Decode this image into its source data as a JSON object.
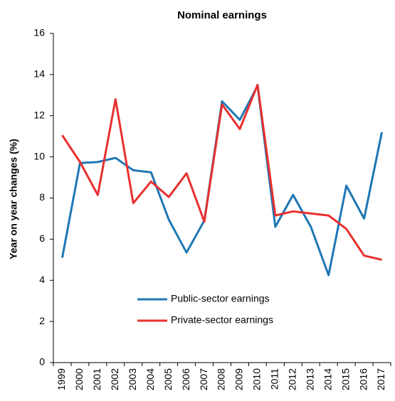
{
  "chart_data": {
    "type": "line",
    "title": "Nominal earnings",
    "y_label": "Year on year changes (%)",
    "categories": [
      "1999",
      "2000",
      "2001",
      "2002",
      "2003",
      "2004",
      "2005",
      "2006",
      "2007",
      "2008",
      "2009",
      "2010",
      "2011",
      "2012",
      "2013",
      "2014",
      "2015",
      "2016",
      "2017"
    ],
    "series": [
      {
        "name": "Public-sector earnings",
        "color": "#1f77b4",
        "values": [
          5.1,
          9.7,
          9.75,
          9.95,
          9.35,
          9.25,
          6.95,
          5.35,
          6.9,
          12.7,
          11.8,
          13.45,
          6.6,
          8.15,
          6.6,
          4.25,
          8.6,
          7.0,
          11.2
        ]
      },
      {
        "name": "Private-sector earnings",
        "color": "#e8302f",
        "values": [
          11.05,
          9.75,
          8.15,
          12.8,
          7.75,
          8.8,
          8.05,
          9.2,
          6.85,
          12.55,
          11.35,
          13.5,
          7.15,
          7.35,
          7.25,
          7.15,
          6.5,
          5.2,
          5.0
        ]
      }
    ],
    "ylim": [
      0,
      16
    ],
    "yticks": [
      0,
      2,
      4,
      6,
      8,
      10,
      12,
      14,
      16
    ],
    "legend": "lower center"
  }
}
